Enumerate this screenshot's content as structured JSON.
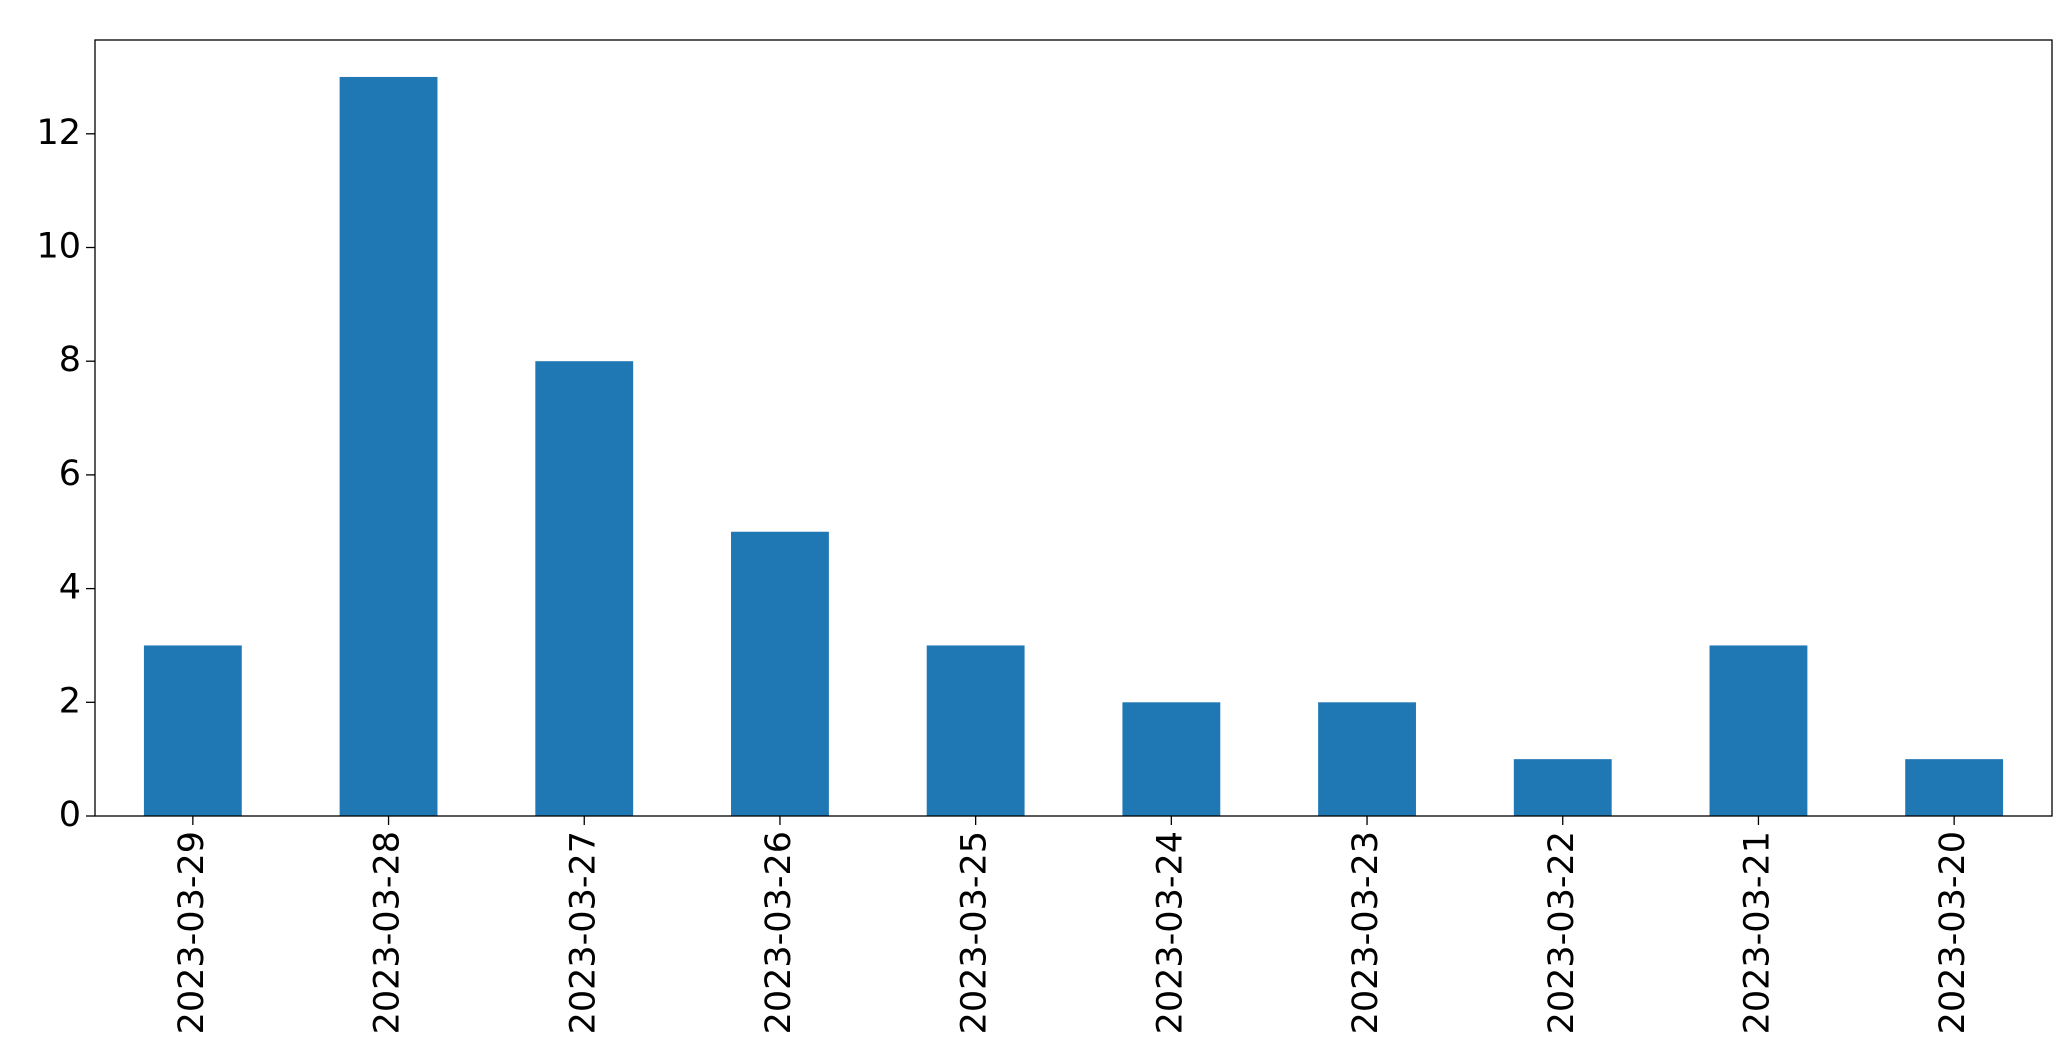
{
  "chart_data": {
    "type": "bar",
    "categories": [
      "2023-03-29",
      "2023-03-28",
      "2023-03-27",
      "2023-03-26",
      "2023-03-25",
      "2023-03-24",
      "2023-03-23",
      "2023-03-22",
      "2023-03-21",
      "2023-03-20"
    ],
    "values": [
      3,
      13,
      8,
      5,
      3,
      2,
      2,
      1,
      3,
      1
    ],
    "color": "#1f77b4",
    "ylim": [
      0,
      13.65
    ],
    "yticks": [
      0,
      2,
      4,
      6,
      8,
      10,
      12
    ],
    "grid": false
  }
}
